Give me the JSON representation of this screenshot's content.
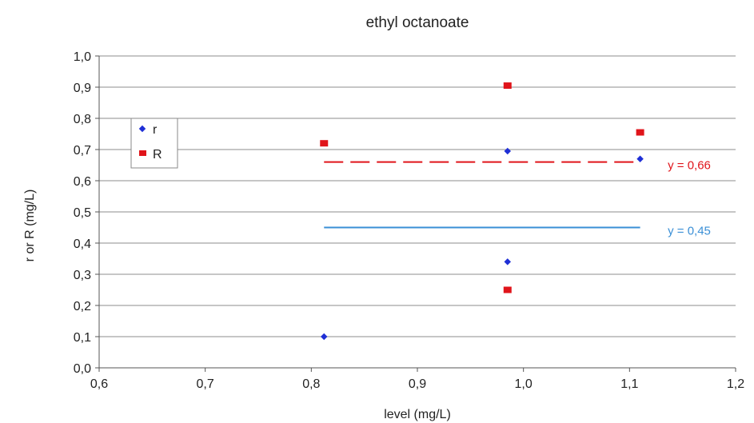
{
  "chart_data": {
    "type": "scatter",
    "title": "ethyl octanoate",
    "xlabel": "level (mg/L)",
    "ylabel": "r or R (mg/L)",
    "xlim": [
      0.6,
      1.2
    ],
    "ylim": [
      0.0,
      1.0
    ],
    "x_ticks": [
      "0,6",
      "0,7",
      "0,8",
      "0,9",
      "1,0",
      "1,1",
      "1,2"
    ],
    "y_ticks": [
      "0,0",
      "0,1",
      "0,2",
      "0,3",
      "0,4",
      "0,5",
      "0,6",
      "0,7",
      "0,8",
      "0,9",
      "1,0"
    ],
    "grid": "horizontal",
    "legend_position": "left",
    "series": [
      {
        "name": "r",
        "color": "#1f2fd6",
        "marker": "diamond",
        "points": [
          {
            "x": 0.812,
            "y": 0.1
          },
          {
            "x": 0.985,
            "y": 0.34
          },
          {
            "x": 0.985,
            "y": 0.695
          },
          {
            "x": 1.11,
            "y": 0.67
          }
        ]
      },
      {
        "name": "R",
        "color": "#e0141a",
        "marker": "square",
        "points": [
          {
            "x": 0.812,
            "y": 0.72
          },
          {
            "x": 0.985,
            "y": 0.25
          },
          {
            "x": 0.985,
            "y": 0.905
          },
          {
            "x": 1.11,
            "y": 0.755
          }
        ]
      }
    ],
    "reference_lines": [
      {
        "label": "y = 0,66",
        "y": 0.66,
        "x_start": 0.812,
        "x_end": 1.11,
        "color": "#e0141a",
        "style": "dashed"
      },
      {
        "label": "y = 0,45",
        "y": 0.45,
        "x_start": 0.812,
        "x_end": 1.11,
        "color": "#3a8fd6",
        "style": "solid"
      }
    ]
  }
}
